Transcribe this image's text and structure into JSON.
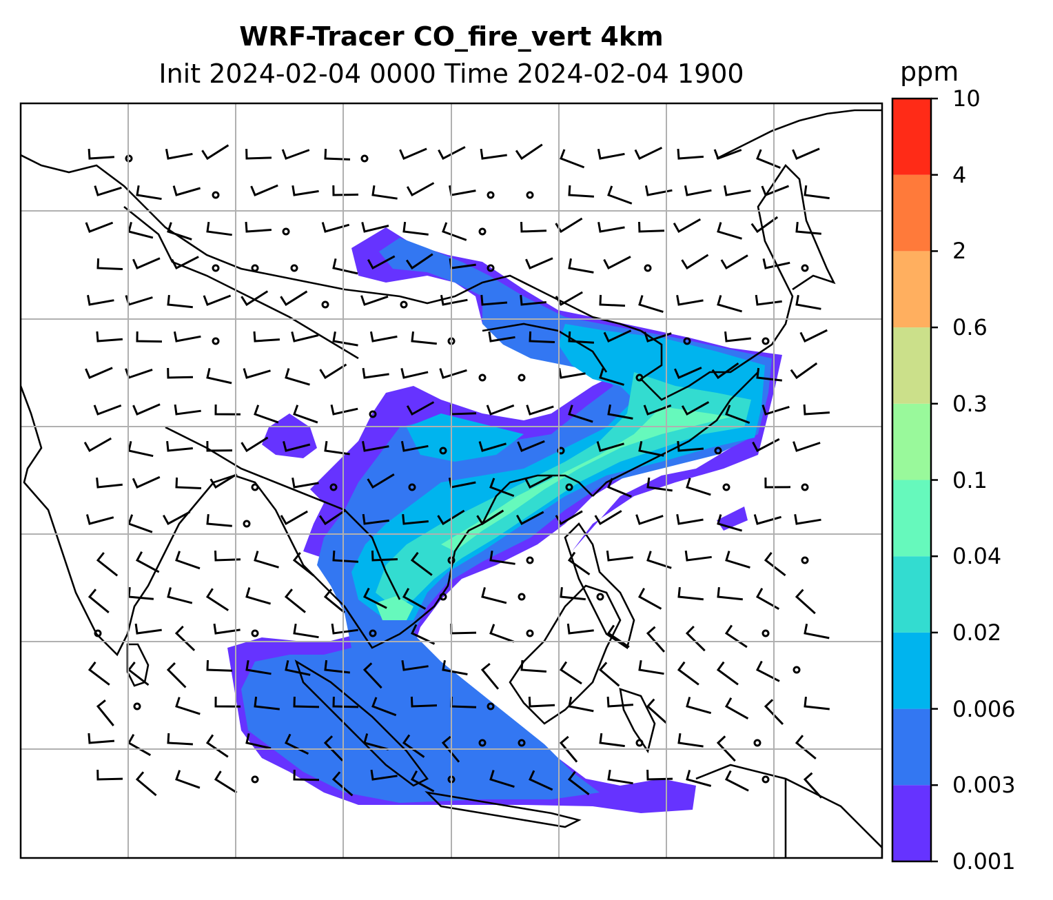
{
  "title": {
    "line1": "WRF-Tracer CO_fire_vert 4km",
    "line2": "Init 2024-02-04 0000 Time 2024-02-04 1900"
  },
  "colorbar": {
    "unit": "ppm",
    "levels": [
      "0.001",
      "0.003",
      "0.006",
      "0.02",
      "0.04",
      "0.1",
      "0.3",
      "0.6",
      "2",
      "4",
      "10"
    ],
    "colors": [
      "#6633ff",
      "#3377f2",
      "#00b4ee",
      "#33dcd0",
      "#66f9bc",
      "#99f99b",
      "#cbe08a",
      "#ffaf5f",
      "#ff7a3a",
      "#ff2b17"
    ]
  },
  "map": {
    "gridlines": true,
    "coastline_color": "#000000",
    "gridline_color": "#b0b0b0",
    "wind_barbs": true
  }
}
